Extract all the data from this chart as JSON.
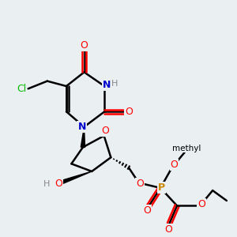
{
  "bg_color": "#eaeff2",
  "bond_color": "#000000",
  "bond_width": 1.8,
  "colors": {
    "O": "#ff0000",
    "N": "#0000cc",
    "Cl": "#00bb00",
    "P": "#cc8800",
    "H": "#888888",
    "C": "#000000"
  },
  "figsize": [
    3.0,
    3.0
  ],
  "dpi": 100
}
